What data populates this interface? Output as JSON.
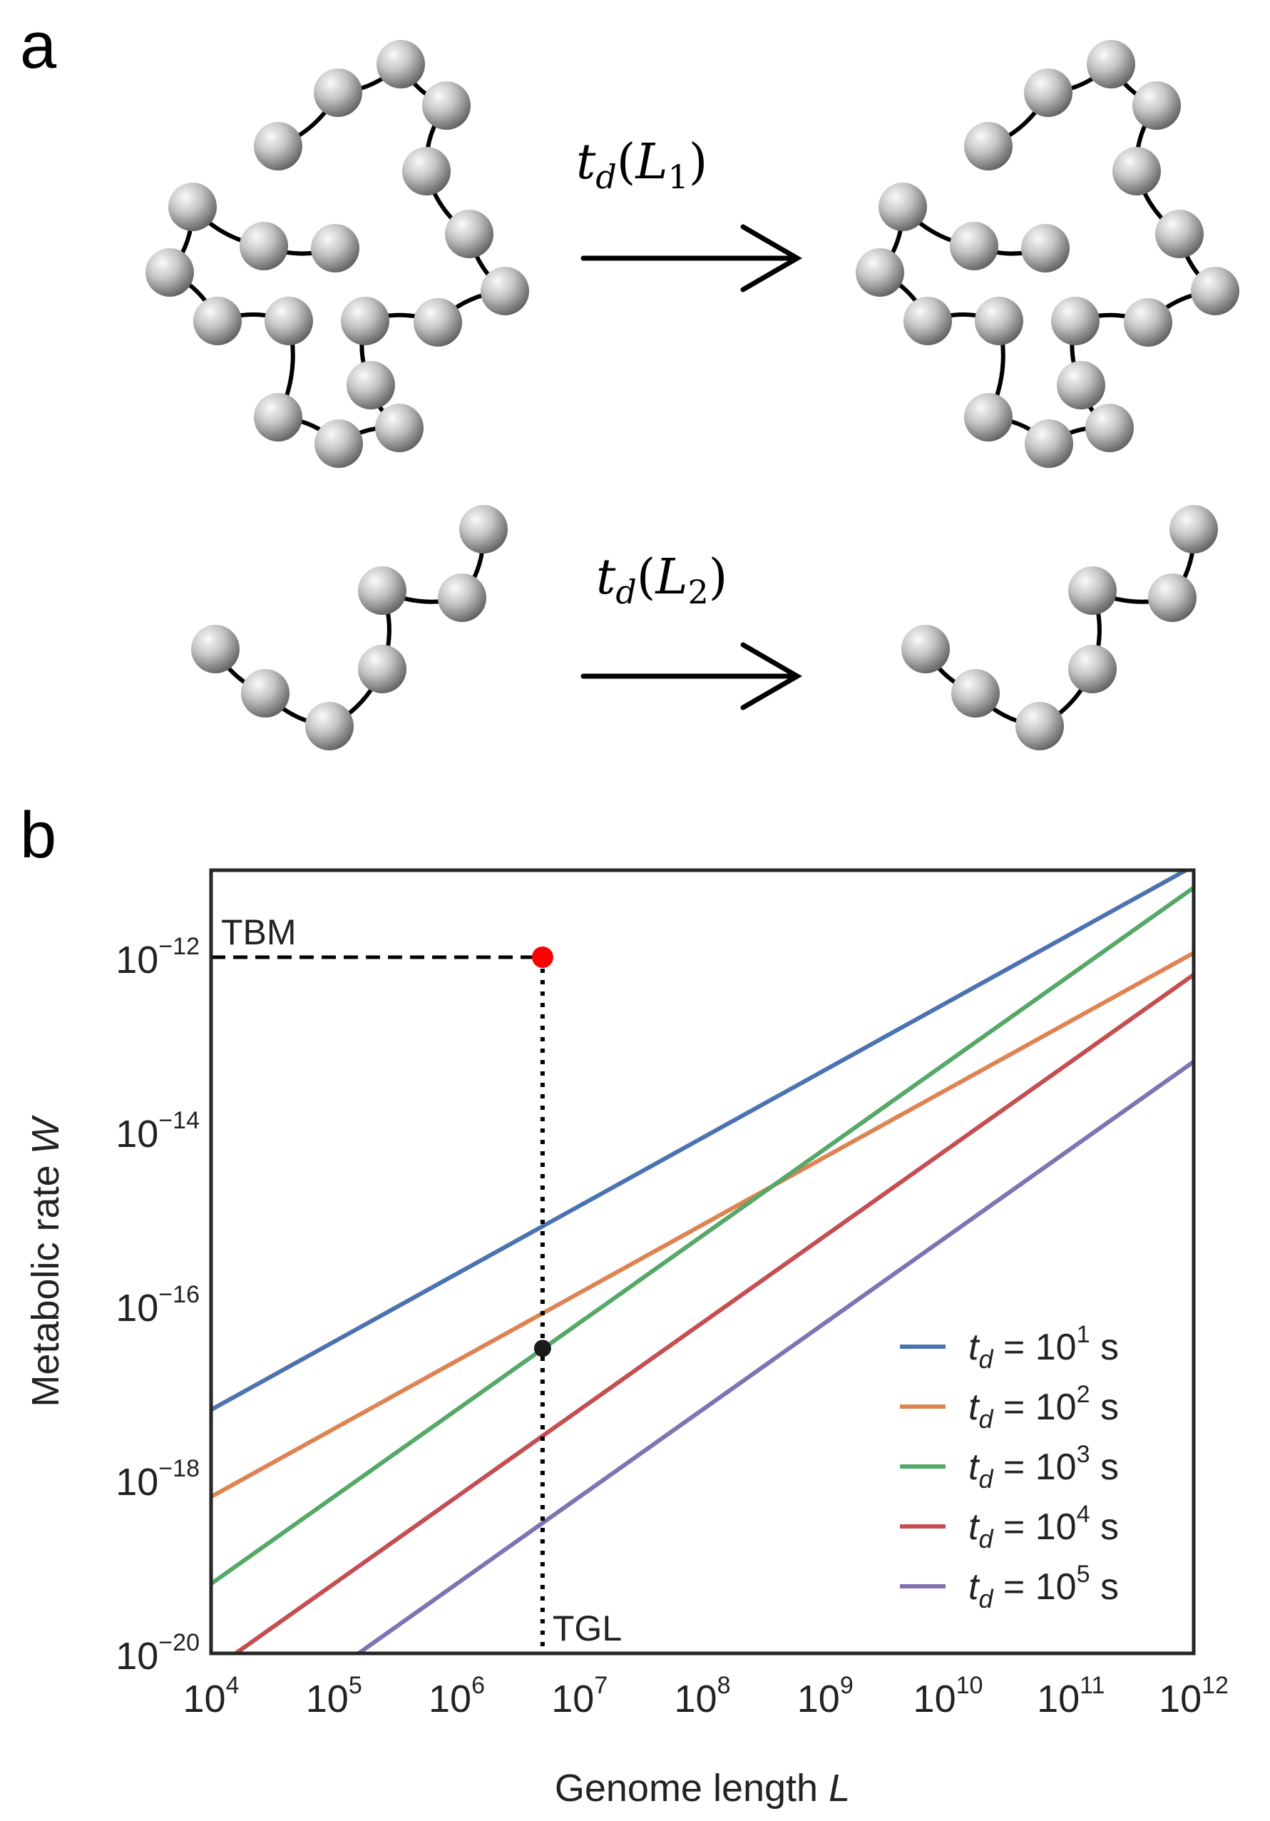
{
  "panels": {
    "a_label": "a",
    "b_label": "b"
  },
  "panel_a": {
    "arrow_top_label": {
      "t": "t",
      "sub_d": "d",
      "open": "(",
      "L": "L",
      "sub": "1",
      "close": ")"
    },
    "arrow_bottom_label": {
      "t": "t",
      "sub_d": "d",
      "open": "(",
      "L": "L",
      "sub": "2",
      "close": ")"
    }
  },
  "colors": {
    "series": [
      "#4C72B0",
      "#DD8452",
      "#55A868",
      "#C44E52",
      "#8172B2"
    ],
    "tbm_point": "#FF0000",
    "tgl_point": "#1a1a1a",
    "bead_light": "#f2f2f2",
    "bead_dark": "#6e6e6e"
  },
  "chart_data": {
    "type": "line",
    "xscale": "log",
    "yscale": "log",
    "xlabel": {
      "text": "Genome length ",
      "var": "L"
    },
    "ylabel": {
      "text": "Metabolic rate ",
      "var": "W"
    },
    "xlim": [
      10000,
      1000000000000
    ],
    "ylim": [
      1e-20,
      1e-11
    ],
    "xticks": [
      {
        "base": "10",
        "exp": "4"
      },
      {
        "base": "10",
        "exp": "5"
      },
      {
        "base": "10",
        "exp": "6"
      },
      {
        "base": "10",
        "exp": "7"
      },
      {
        "base": "10",
        "exp": "8"
      },
      {
        "base": "10",
        "exp": "9"
      },
      {
        "base": "10",
        "exp": "10"
      },
      {
        "base": "10",
        "exp": "11"
      },
      {
        "base": "10",
        "exp": "12"
      }
    ],
    "yticks": [
      {
        "base": "10",
        "exp": "−12",
        "value": 1e-12
      },
      {
        "base": "10",
        "exp": "−14",
        "value": 1e-14
      },
      {
        "base": "10",
        "exp": "−16",
        "value": 1e-16
      },
      {
        "base": "10",
        "exp": "−18",
        "value": 1e-18
      },
      {
        "base": "10",
        "exp": "−20",
        "value": 1e-20
      }
    ],
    "grid": false,
    "legend_position": "lower-right",
    "series": [
      {
        "name": {
          "t": "t",
          "d": "d",
          "eq": " = 10",
          "exp": "1",
          "unit": " s"
        },
        "x": [
          10000,
          1000000000000
        ],
        "y": [
          6.3e-18,
          1.12e-11
        ]
      },
      {
        "name": {
          "t": "t",
          "d": "d",
          "eq": " = 10",
          "exp": "2",
          "unit": " s"
        },
        "x": [
          10000,
          1000000000000
        ],
        "y": [
          6.3e-19,
          1.12e-12
        ]
      },
      {
        "name": {
          "t": "t",
          "d": "d",
          "eq": " = 10",
          "exp": "3",
          "unit": " s"
        },
        "x": [
          10000,
          1000000000000
        ],
        "y": [
          6.3e-20,
          6.3e-12
        ]
      },
      {
        "name": {
          "t": "t",
          "d": "d",
          "eq": " = 10",
          "exp": "4",
          "unit": " s"
        },
        "x": [
          10000,
          1000000000000
        ],
        "y": [
          6.3e-21,
          6.3e-13
        ]
      },
      {
        "name": {
          "t": "t",
          "d": "d",
          "eq": " = 10",
          "exp": "5",
          "unit": " s"
        },
        "x": [
          10000,
          1000000000000
        ],
        "y": [
          6.3e-22,
          6.3e-14
        ]
      }
    ],
    "annotations": {
      "tbm": {
        "label": "TBM",
        "x": 5000000,
        "y": 1e-12
      },
      "tgl": {
        "label": "TGL",
        "x": 5000000,
        "y": 3.2e-17
      }
    }
  }
}
